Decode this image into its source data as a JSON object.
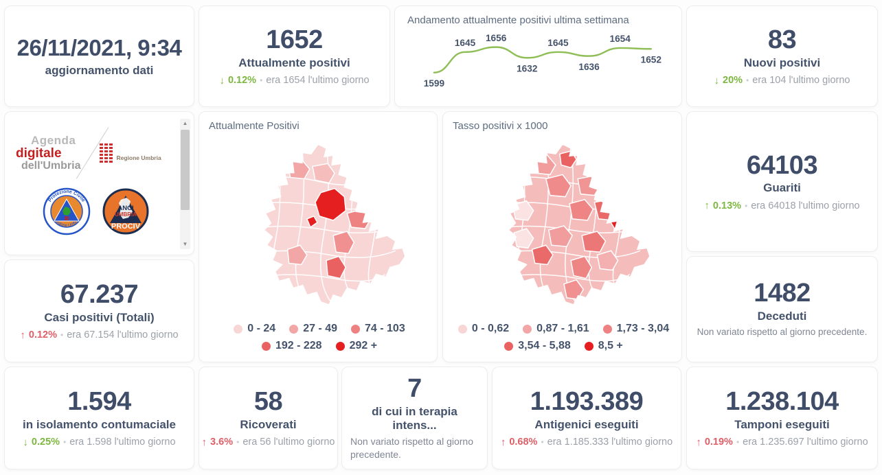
{
  "colors": {
    "number_navy": "#3f4d68",
    "label_navy": "#44536b",
    "good_green": "#7cb740",
    "bad_red": "#e05e66",
    "muted_gray": "#9ba1a8",
    "trend_line_green": "#8fbe57",
    "map_palette": [
      "#f8d6d6",
      "#f3a6a6",
      "#ee8282",
      "#e96161",
      "#e51f1f"
    ]
  },
  "ui": {
    "bullet": "•",
    "scroll_up": "▲",
    "scroll_down": "▼"
  },
  "header": {
    "datetime": "26/11/2021, 9:34",
    "subtitle": "aggiornamento dati"
  },
  "kpis": {
    "attualmente": {
      "value": "1652",
      "label": "Attualmente positivi",
      "arrow": "↓",
      "pct": "0.12%",
      "detail": "era 1654  l'ultimo giorno"
    },
    "nuovi": {
      "value": "83",
      "label": "Nuovi positivi",
      "arrow": "↓",
      "pct": "20%",
      "detail": "era 104  l'ultimo giorno"
    },
    "guariti": {
      "value": "64103",
      "label": "Guariti",
      "arrow": "↑",
      "pct": "0.13%",
      "detail": "era 64018  l'ultimo giorno"
    },
    "deceduti": {
      "value": "1482",
      "label": "Deceduti",
      "note": "Non variato rispetto al giorno precedente."
    },
    "casi": {
      "value": "67.237",
      "label": "Casi positivi (Totali)",
      "arrow": "↑",
      "pct": "0.12%",
      "detail": "era 67.154  l'ultimo giorno"
    },
    "isolamento": {
      "value": "1.594",
      "label": "in isolamento contumaciale",
      "arrow": "↓",
      "pct": "0.25%",
      "detail": "era 1.598  l'ultimo giorno"
    },
    "ricoverati": {
      "value": "58",
      "label": "Ricoverati",
      "arrow": "↑",
      "pct": "3.6%",
      "detail": "era 56  l'ultimo giorno"
    },
    "terapia": {
      "value": "7",
      "label": "di cui in terapia intens...",
      "note": "Non variato rispetto al giorno precedente."
    },
    "antigenici": {
      "value": "1.193.389",
      "label": "Antigenici eseguiti",
      "arrow": "↑",
      "pct": "0.68%",
      "detail": "era 1.185.333  l'ultimo giorno"
    },
    "tamponi": {
      "value": "1.238.104",
      "label": "Tamponi eseguiti",
      "arrow": "↑",
      "pct": "0.19%",
      "detail": "era 1.235.697  l'ultimo giorno"
    }
  },
  "maps": {
    "attualmente": {
      "title": "Attualmente Positivi",
      "legend": [
        "0 - 24",
        "27 - 49",
        "74 - 103",
        "192 - 228",
        "292 +"
      ]
    },
    "tasso": {
      "title": "Tasso positivi x 1000",
      "legend": [
        "0 - 0,62",
        "0,87 - 1,61",
        "1,73 - 3,04",
        "3,54 - 5,88",
        "8,5 +"
      ]
    }
  },
  "logos": {
    "agenda": {
      "line1": "Agenda",
      "line2": "digitale",
      "line3": "dell'Umbria"
    },
    "regione": {
      "label": "Regione Umbria"
    },
    "protezione": {
      "top": "Protezione Civile",
      "bottom": "Regione Umbria"
    },
    "anci": {
      "line1": "ANCI",
      "line2": "UMBRIA",
      "line3": "PROCIV"
    }
  },
  "chart_data": {
    "type": "line",
    "title": "Andamento attualmente positivi ultima settimana",
    "x": [
      1,
      2,
      3,
      4,
      5,
      6,
      7,
      8
    ],
    "values": [
      1599,
      1645,
      1656,
      1632,
      1645,
      1636,
      1654,
      1652
    ],
    "label_positions": [
      "below",
      "above",
      "above",
      "below",
      "above",
      "below",
      "above",
      "below"
    ],
    "ylim": [
      1599,
      1656
    ],
    "line_color": "#8fbe57",
    "grid": false,
    "legend_position": "none"
  }
}
